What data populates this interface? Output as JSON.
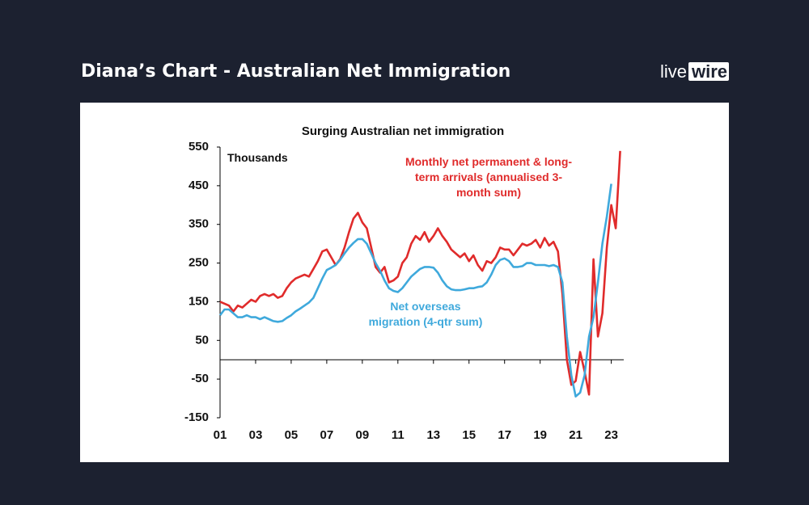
{
  "header": {
    "title": "Diana’s Chart - Australian Net Immigration",
    "logo": [
      "live",
      "wire"
    ]
  },
  "chart_data": {
    "type": "line",
    "title": "Surging Australian net immigration",
    "y_label": "Thousands",
    "xlim": [
      1,
      23.7
    ],
    "ylim": [
      -150,
      550
    ],
    "xticks": [
      {
        "value": 1,
        "label": "01"
      },
      {
        "value": 3,
        "label": "03"
      },
      {
        "value": 5,
        "label": "05"
      },
      {
        "value": 7,
        "label": "07"
      },
      {
        "value": 9,
        "label": "09"
      },
      11,
      13,
      15,
      17,
      19,
      21,
      23
    ],
    "yticks": [
      550,
      450,
      350,
      250,
      150,
      50,
      -50,
      -150
    ],
    "x": [
      1,
      1.25,
      1.5,
      1.75,
      2,
      2.25,
      2.5,
      2.75,
      3,
      3.25,
      3.5,
      3.75,
      4,
      4.25,
      4.5,
      4.75,
      5,
      5.25,
      5.5,
      5.75,
      6,
      6.25,
      6.5,
      6.75,
      7,
      7.25,
      7.5,
      7.75,
      8,
      8.25,
      8.5,
      8.75,
      9,
      9.25,
      9.5,
      9.75,
      10,
      10.25,
      10.5,
      10.75,
      11,
      11.25,
      11.5,
      11.75,
      12,
      12.25,
      12.5,
      12.75,
      13,
      13.25,
      13.5,
      13.75,
      14,
      14.25,
      14.5,
      14.75,
      15,
      15.25,
      15.5,
      15.75,
      16,
      16.25,
      16.5,
      16.75,
      17,
      17.25,
      17.5,
      17.75,
      18,
      18.25,
      18.5,
      18.75,
      19,
      19.25,
      19.5,
      19.75,
      20,
      20.25,
      20.5,
      20.75,
      21,
      21.25,
      21.5,
      21.75,
      22,
      22.25,
      22.5,
      22.75,
      23,
      23.25,
      23.5
    ],
    "series": [
      {
        "name": [
          "Monthly net permanent & long-",
          "term arrivals (annualised 3-",
          "month sum)"
        ],
        "color": "#e02b2b",
        "values": [
          150,
          145,
          140,
          125,
          140,
          135,
          145,
          155,
          150,
          165,
          170,
          165,
          170,
          160,
          165,
          185,
          200,
          210,
          215,
          220,
          215,
          235,
          255,
          280,
          285,
          265,
          245,
          260,
          290,
          330,
          365,
          380,
          355,
          340,
          290,
          240,
          225,
          240,
          200,
          205,
          215,
          250,
          265,
          300,
          320,
          310,
          330,
          305,
          320,
          340,
          320,
          305,
          285,
          275,
          265,
          275,
          255,
          270,
          245,
          230,
          255,
          250,
          265,
          290,
          285,
          285,
          270,
          285,
          300,
          295,
          300,
          310,
          290,
          315,
          295,
          305,
          280,
          170,
          0,
          -65,
          -55,
          20,
          -30,
          -90,
          260,
          60,
          120,
          290,
          400,
          340,
          540
        ]
      },
      {
        "name": [
          "Net overseas",
          "migration (4-qtr sum)"
        ],
        "color": "#3fa9dc",
        "values": [
          115,
          130,
          130,
          120,
          110,
          110,
          115,
          110,
          110,
          105,
          110,
          105,
          100,
          98,
          100,
          108,
          115,
          125,
          132,
          140,
          148,
          160,
          185,
          210,
          232,
          238,
          245,
          258,
          275,
          290,
          302,
          312,
          312,
          300,
          275,
          250,
          230,
          205,
          185,
          178,
          175,
          185,
          200,
          215,
          225,
          235,
          240,
          240,
          238,
          225,
          205,
          190,
          182,
          180,
          180,
          182,
          185,
          185,
          188,
          190,
          200,
          220,
          245,
          258,
          262,
          255,
          240,
          240,
          242,
          250,
          250,
          245,
          245,
          245,
          242,
          245,
          240,
          200,
          60,
          -40,
          -95,
          -85,
          -40,
          60,
          110,
          200,
          300,
          370,
          455,
          null,
          null
        ]
      }
    ]
  }
}
